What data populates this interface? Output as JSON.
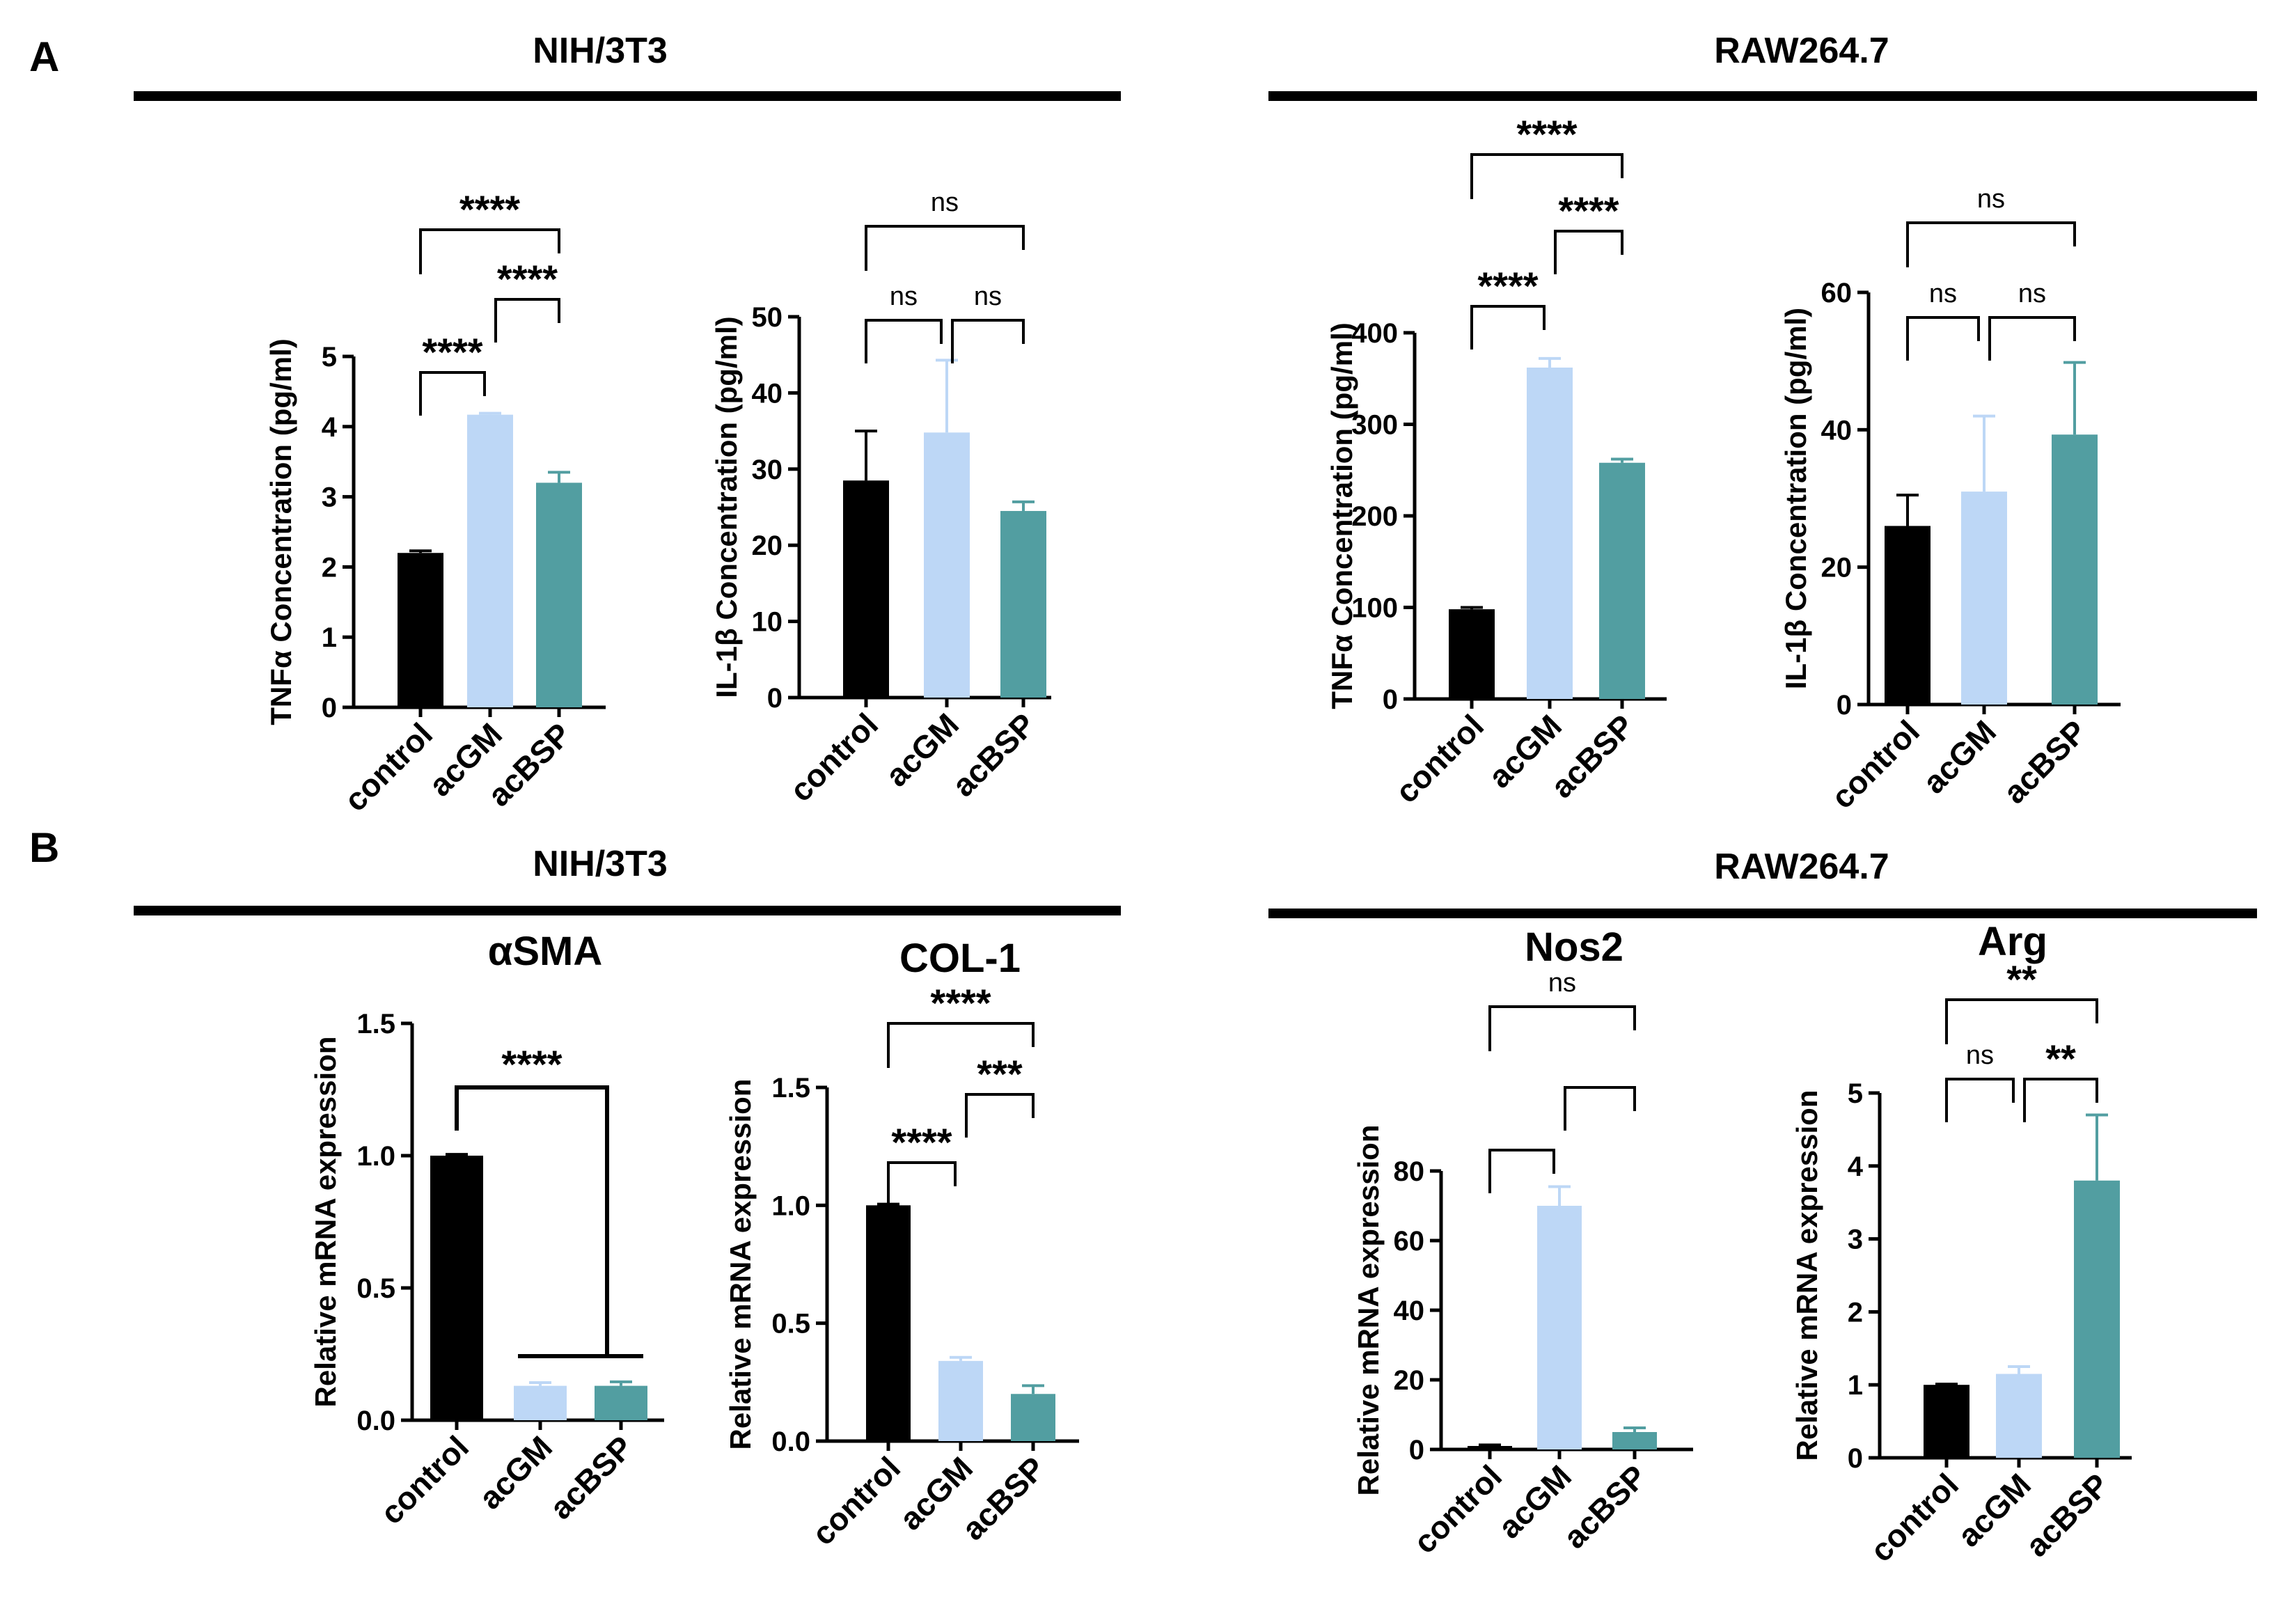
{
  "colors": {
    "control": "#000000",
    "acGM": "#bdd7f6",
    "acBSP": "#529ea1",
    "axis": "#000000"
  },
  "panels": {
    "a": {
      "letter": "A",
      "left_group": "NIH/3T3",
      "right_group": "RAW264.7"
    },
    "b": {
      "letter": "B",
      "left_group": "NIH/3T3",
      "right_group": "RAW264.7"
    }
  },
  "chart_data": [
    {
      "id": "a1",
      "type": "bar",
      "title": "",
      "ylabel": "TNFα Concentration (pg/ml)",
      "categories": [
        "control",
        "acGM",
        "acBSP"
      ],
      "values": [
        2.2,
        4.17,
        3.2
      ],
      "errors": [
        0.03,
        0.02,
        0.15
      ],
      "ylim": [
        0,
        5
      ],
      "yticks": [
        0,
        1,
        2,
        3,
        4,
        5
      ],
      "comparisons": [
        {
          "from": 0,
          "to": 1,
          "label": "****"
        },
        {
          "from": 1,
          "to": 2,
          "label": "****"
        },
        {
          "from": 0,
          "to": 2,
          "label": "****"
        }
      ]
    },
    {
      "id": "a2",
      "type": "bar",
      "title": "",
      "ylabel": "IL-1β Concentration (pg/ml)",
      "categories": [
        "control",
        "acGM",
        "acBSP"
      ],
      "values": [
        28.5,
        34.8,
        24.5
      ],
      "errors": [
        6.5,
        9.5,
        1.2
      ],
      "ylim": [
        0,
        50
      ],
      "yticks": [
        0,
        10,
        20,
        30,
        40,
        50
      ],
      "comparisons": [
        {
          "from": 0,
          "to": 1,
          "label": "ns"
        },
        {
          "from": 1,
          "to": 2,
          "label": "ns"
        },
        {
          "from": 0,
          "to": 2,
          "label": "ns"
        }
      ]
    },
    {
      "id": "a3",
      "type": "bar",
      "title": "",
      "ylabel": "TNFα Concentration (pg/ml)",
      "categories": [
        "control",
        "acGM",
        "acBSP"
      ],
      "values": [
        98,
        362,
        258
      ],
      "errors": [
        2,
        10,
        4
      ],
      "ylim": [
        0,
        400
      ],
      "yticks": [
        0,
        100,
        200,
        300,
        400
      ],
      "comparisons": [
        {
          "from": 0,
          "to": 1,
          "label": "****"
        },
        {
          "from": 1,
          "to": 2,
          "label": "****"
        },
        {
          "from": 0,
          "to": 2,
          "label": "****"
        }
      ]
    },
    {
      "id": "a4",
      "type": "bar",
      "title": "",
      "ylabel": "IL-1β Concentration (pg/ml)",
      "categories": [
        "control",
        "acGM",
        "acBSP"
      ],
      "values": [
        26,
        31,
        39.3
      ],
      "errors": [
        4.5,
        11,
        10.5
      ],
      "ylim": [
        0,
        60
      ],
      "yticks": [
        0,
        20,
        40,
        60
      ],
      "comparisons": [
        {
          "from": 0,
          "to": 1,
          "label": "ns"
        },
        {
          "from": 1,
          "to": 2,
          "label": "ns"
        },
        {
          "from": 0,
          "to": 2,
          "label": "ns"
        }
      ]
    },
    {
      "id": "b1",
      "type": "bar",
      "title": "αSMA",
      "ylabel": "Relative mRNA expression",
      "categories": [
        "control",
        "acGM",
        "acBSP"
      ],
      "values": [
        1.0,
        0.13,
        0.13
      ],
      "errors": [
        0.005,
        0.012,
        0.015
      ],
      "ylim": [
        0,
        1.5
      ],
      "yticks": [
        0.0,
        0.5,
        1.0,
        1.5
      ],
      "comparisons": [
        {
          "from": 0,
          "to": 2,
          "label": "****",
          "bracket": "forked"
        }
      ]
    },
    {
      "id": "b2",
      "type": "bar",
      "title": "COL-1",
      "ylabel": "Relative mRNA expression",
      "categories": [
        "control",
        "acGM",
        "acBSP"
      ],
      "values": [
        1.0,
        0.34,
        0.2
      ],
      "errors": [
        0.005,
        0.015,
        0.035
      ],
      "ylim": [
        0,
        1.5
      ],
      "yticks": [
        0.0,
        0.5,
        1.0,
        1.5
      ],
      "comparisons": [
        {
          "from": 0,
          "to": 1,
          "label": "****"
        },
        {
          "from": 1,
          "to": 2,
          "label": "***"
        },
        {
          "from": 0,
          "to": 2,
          "label": "****"
        }
      ]
    },
    {
      "id": "b3",
      "type": "bar",
      "title": "Nos2",
      "ylabel": "Relative mRNA expression",
      "categories": [
        "control",
        "acGM",
        "acBSP"
      ],
      "values": [
        1,
        70,
        5
      ],
      "errors": [
        0.3,
        5.5,
        1.2
      ],
      "ylim": [
        0,
        80
      ],
      "yticks": [
        0,
        20,
        40,
        60,
        80
      ],
      "comparisons": [
        {
          "from": 0,
          "to": 1,
          "label": ""
        },
        {
          "from": 1,
          "to": 2,
          "label": ""
        },
        {
          "from": 0,
          "to": 2,
          "label": "ns"
        }
      ]
    },
    {
      "id": "b4",
      "type": "bar",
      "title": "Arg",
      "ylabel": "Relative mRNA expression",
      "categories": [
        "control",
        "acGM",
        "acBSP"
      ],
      "values": [
        1.0,
        1.15,
        3.8
      ],
      "errors": [
        0.01,
        0.1,
        0.9
      ],
      "ylim": [
        0,
        5
      ],
      "yticks": [
        0,
        1,
        2,
        3,
        4,
        5
      ],
      "comparisons": [
        {
          "from": 0,
          "to": 1,
          "label": "ns"
        },
        {
          "from": 1,
          "to": 2,
          "label": "**"
        },
        {
          "from": 0,
          "to": 2,
          "label": "**"
        }
      ]
    }
  ]
}
